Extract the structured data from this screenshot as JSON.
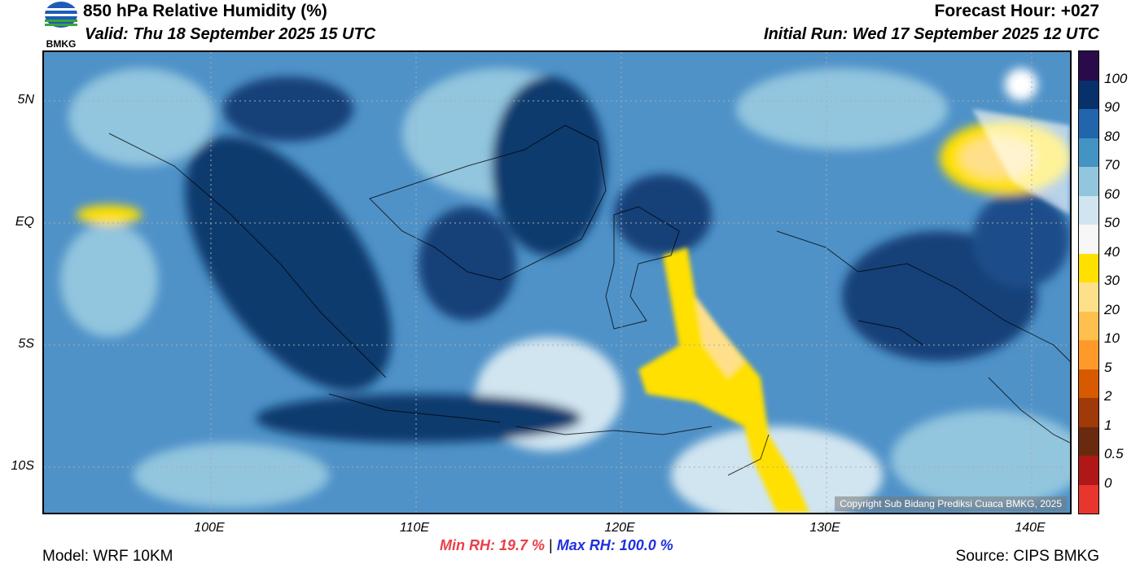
{
  "header": {
    "title": "850 hPa Relative Humidity (%)",
    "valid": "Valid: Thu 18 September 2025 15 UTC",
    "forecast_hour": "Forecast Hour: +027",
    "initial_run": "Initial Run: Wed 17 September 2025 12 UTC",
    "logo_text": "BMKG"
  },
  "map": {
    "lat_labels": [
      "5N",
      "EQ",
      "5S",
      "10S"
    ],
    "lon_labels": [
      "100E",
      "110E",
      "120E",
      "130E",
      "140E"
    ],
    "copyright": "Copyright Sub Bidang Prediksi Cuaca BMKG, 2025",
    "colors": {
      "land": "#2d6db4",
      "sea": "#7fb3d9",
      "wet": "#0b3a6e",
      "dry": "#fadf00"
    }
  },
  "colorbar": {
    "labels": [
      "100",
      "90",
      "80",
      "70",
      "60",
      "50",
      "40",
      "30",
      "20",
      "10",
      "5",
      "2",
      "1",
      "0.5",
      "0"
    ],
    "colors": [
      "#2a0a4a",
      "#08306b",
      "#2166ac",
      "#4393c3",
      "#92c5de",
      "#d1e5f0",
      "#f7f7f7",
      "#ffe000",
      "#ffe08a",
      "#ffc04d",
      "#ff9a2a",
      "#d85a00",
      "#a03a08",
      "#6a2a10",
      "#b01818",
      "#e8362e"
    ]
  },
  "stats": {
    "min": "Min RH:  19.7 %",
    "separator": "|",
    "max": "Max RH: 100.0 %"
  },
  "footer": {
    "model": "Model: WRF 10KM",
    "source": "Source: CIPS BMKG"
  }
}
